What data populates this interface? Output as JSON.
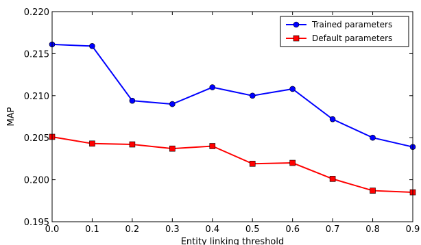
{
  "chart_data": {
    "type": "line",
    "title": "",
    "xlabel": "Entity linking threshold",
    "ylabel": "MAP",
    "x": [
      0.0,
      0.1,
      0.2,
      0.3,
      0.4,
      0.5,
      0.6,
      0.7,
      0.8,
      0.9
    ],
    "xlim": [
      0.0,
      0.9
    ],
    "ylim": [
      0.195,
      0.22
    ],
    "x_tick_labels": [
      "0.0",
      "0.1",
      "0.2",
      "0.3",
      "0.4",
      "0.5",
      "0.6",
      "0.7",
      "0.8",
      "0.9"
    ],
    "y_ticks": [
      0.195,
      0.2,
      0.205,
      0.21,
      0.215,
      0.22
    ],
    "y_tick_labels": [
      "0.195",
      "0.200",
      "0.205",
      "0.210",
      "0.215",
      "0.220"
    ],
    "grid": false,
    "legend_position": "top-right",
    "series": [
      {
        "name": "Trained parameters",
        "color": "#0000ff",
        "marker": "circle",
        "values": [
          0.2161,
          0.2159,
          0.2094,
          0.209,
          0.211,
          0.21,
          0.2108,
          0.2072,
          0.205,
          0.2039
        ]
      },
      {
        "name": "Default parameters",
        "color": "#ff0000",
        "marker": "square",
        "values": [
          0.2051,
          0.2043,
          0.2042,
          0.2037,
          0.204,
          0.2019,
          0.202,
          0.2001,
          0.1987,
          0.1985
        ]
      }
    ]
  }
}
